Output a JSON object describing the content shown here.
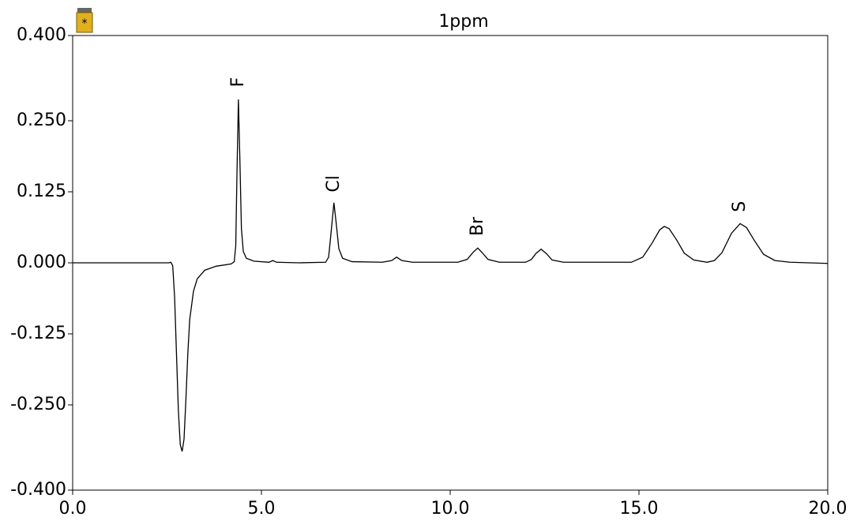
{
  "chart_data": {
    "type": "line",
    "title": "1ppm",
    "color": "#000000",
    "x": [
      0,
      1,
      2,
      2.55,
      2.6,
      2.65,
      2.7,
      2.75,
      2.8,
      2.85,
      2.9,
      2.95,
      3.0,
      3.05,
      3.1,
      3.2,
      3.3,
      3.5,
      3.8,
      4.2,
      4.28,
      4.32,
      4.35,
      4.39,
      4.43,
      4.47,
      4.52,
      4.6,
      4.8,
      5.2,
      5.3,
      5.4,
      6.0,
      6.7,
      6.78,
      6.84,
      6.92,
      6.98,
      7.05,
      7.15,
      7.4,
      8.2,
      8.45,
      8.58,
      8.72,
      9.0,
      10.2,
      10.45,
      10.6,
      10.73,
      10.86,
      11.0,
      11.3,
      12.0,
      12.15,
      12.28,
      12.41,
      12.55,
      12.7,
      13.0,
      14.8,
      15.1,
      15.35,
      15.55,
      15.67,
      15.8,
      16.0,
      16.2,
      16.45,
      16.8,
      17.0,
      17.2,
      17.45,
      17.68,
      17.85,
      18.05,
      18.3,
      18.6,
      19.0,
      20.0
    ],
    "values": [
      0,
      0,
      0,
      0,
      0.001,
      -0.005,
      -0.06,
      -0.16,
      -0.26,
      -0.32,
      -0.332,
      -0.31,
      -0.24,
      -0.16,
      -0.1,
      -0.05,
      -0.028,
      -0.013,
      -0.006,
      -0.002,
      0.002,
      0.03,
      0.15,
      0.2875,
      0.18,
      0.06,
      0.02,
      0.008,
      0.003,
      0.001,
      0.004,
      0.001,
      0,
      0.001,
      0.01,
      0.05,
      0.1056,
      0.07,
      0.025,
      0.008,
      0.002,
      0.001,
      0.004,
      0.01,
      0.004,
      0.001,
      0.001,
      0.006,
      0.018,
      0.026,
      0.017,
      0.006,
      0.001,
      0.001,
      0.006,
      0.017,
      0.024,
      0.016,
      0.005,
      0.001,
      0.001,
      0.01,
      0.035,
      0.058,
      0.064,
      0.06,
      0.04,
      0.017,
      0.005,
      0.001,
      0.004,
      0.018,
      0.052,
      0.069,
      0.062,
      0.04,
      0.015,
      0.004,
      0.001,
      -0.001
    ],
    "xlim": [
      0,
      20
    ],
    "ylim": [
      -0.4,
      0.4
    ],
    "xticks": [
      {
        "value": 0,
        "label": "0.0"
      },
      {
        "value": 5,
        "label": "5.0"
      },
      {
        "value": 10,
        "label": "10.0"
      },
      {
        "value": 15,
        "label": "15.0"
      },
      {
        "value": 20,
        "label": "20.0"
      }
    ],
    "yticks": [
      {
        "value": 0.4,
        "label": "0.400"
      },
      {
        "value": 0.25,
        "label": "0.250"
      },
      {
        "value": 0.125,
        "label": "0.125"
      },
      {
        "value": 0,
        "label": "0.000"
      },
      {
        "value": -0.125,
        "label": "-0.125"
      },
      {
        "value": -0.25,
        "label": "-0.250"
      },
      {
        "value": -0.4,
        "label": "-0.400"
      }
    ],
    "annotations": [
      {
        "text": "F",
        "x": 4.39,
        "y": 0.318
      },
      {
        "text": "Cl",
        "x": 6.92,
        "y": 0.139
      },
      {
        "text": "Br",
        "x": 10.73,
        "y": 0.064
      },
      {
        "text": "S",
        "x": 17.68,
        "y": 0.099
      }
    ]
  }
}
